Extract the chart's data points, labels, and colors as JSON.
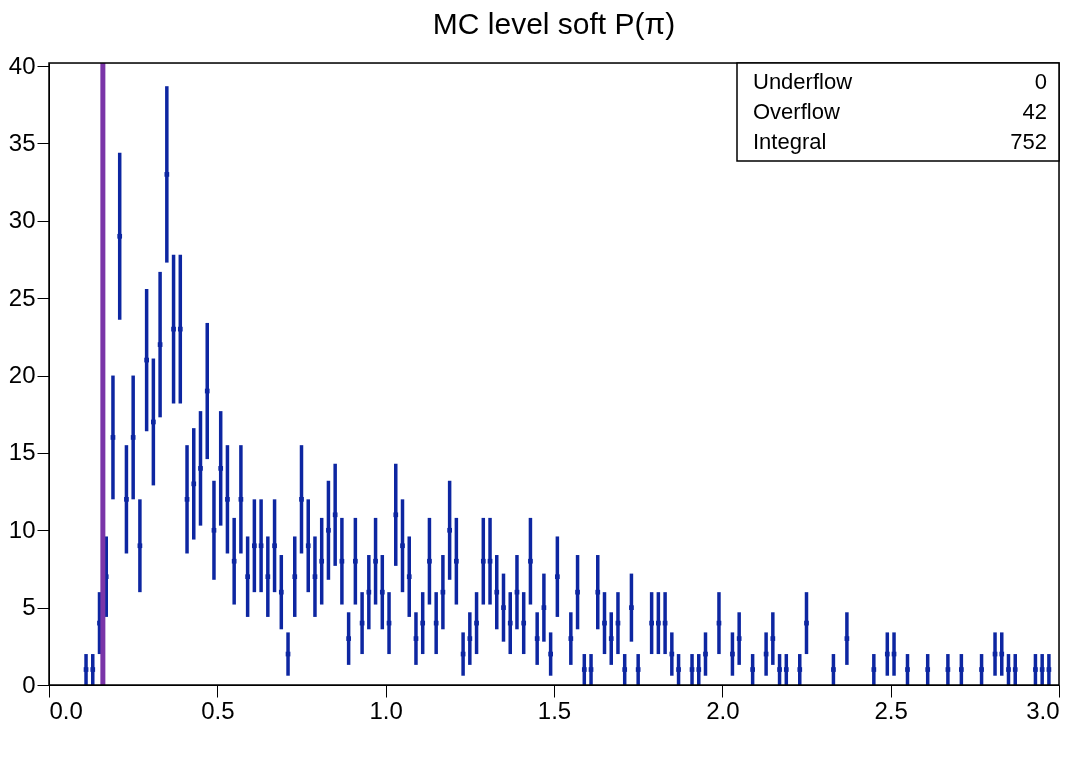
{
  "chart_data": {
    "type": "scatter",
    "title": "MC level soft P(π)",
    "x": [
      0.11,
      0.13,
      0.15,
      0.17,
      0.19,
      0.21,
      0.23,
      0.25,
      0.27,
      0.29,
      0.31,
      0.33,
      0.35,
      0.37,
      0.39,
      0.41,
      0.43,
      0.45,
      0.47,
      0.49,
      0.51,
      0.53,
      0.55,
      0.57,
      0.59,
      0.61,
      0.63,
      0.65,
      0.67,
      0.69,
      0.71,
      0.73,
      0.75,
      0.77,
      0.79,
      0.81,
      0.83,
      0.85,
      0.87,
      0.89,
      0.91,
      0.93,
      0.95,
      0.97,
      0.99,
      1.01,
      1.03,
      1.05,
      1.07,
      1.09,
      1.11,
      1.13,
      1.15,
      1.17,
      1.19,
      1.21,
      1.23,
      1.25,
      1.27,
      1.29,
      1.31,
      1.33,
      1.35,
      1.37,
      1.39,
      1.41,
      1.43,
      1.45,
      1.47,
      1.49,
      1.51,
      1.55,
      1.57,
      1.59,
      1.61,
      1.63,
      1.65,
      1.67,
      1.69,
      1.71,
      1.73,
      1.75,
      1.79,
      1.81,
      1.83,
      1.85,
      1.87,
      1.91,
      1.93,
      1.95,
      1.99,
      2.03,
      2.05,
      2.09,
      2.13,
      2.15,
      2.17,
      2.19,
      2.23,
      2.25,
      2.33,
      2.37,
      2.45,
      2.49,
      2.51,
      2.55,
      2.61,
      2.67,
      2.71,
      2.77,
      2.81,
      2.83,
      2.85,
      2.87,
      2.93,
      2.95,
      2.97
    ],
    "series": [
      {
        "color": "#0d26a1",
        "marker": "square",
        "values": [
          1,
          1,
          4,
          7,
          16,
          29,
          12,
          16,
          9,
          21,
          17,
          22,
          33,
          23,
          23,
          12,
          13,
          14,
          19,
          10,
          14,
          12,
          8,
          12,
          7,
          9,
          9,
          7,
          9,
          6,
          2,
          7,
          12,
          9,
          7,
          8,
          10,
          11,
          8,
          3,
          8,
          4,
          6,
          8,
          6,
          4,
          11,
          9,
          7,
          3,
          4,
          8,
          4,
          6,
          10,
          8,
          2,
          3,
          4,
          8,
          8,
          6,
          5,
          4,
          6,
          4,
          8,
          3,
          5,
          2,
          7,
          3,
          6,
          1,
          1,
          6,
          4,
          3,
          4,
          1,
          5,
          1,
          4,
          4,
          4,
          2,
          1,
          1,
          1,
          2,
          4,
          2,
          3,
          1,
          2,
          3,
          1,
          1,
          1,
          4,
          1,
          3,
          1,
          2,
          2,
          1,
          1,
          1,
          1,
          1,
          2,
          2,
          1,
          1,
          1,
          1,
          1
        ],
        "errors": [
          1,
          1,
          2,
          2.6,
          4,
          5.4,
          3.5,
          4,
          3,
          4.6,
          4.1,
          4.7,
          5.7,
          4.8,
          4.8,
          3.5,
          3.6,
          3.7,
          4.4,
          3.2,
          3.7,
          3.5,
          2.8,
          3.5,
          2.6,
          3,
          3,
          2.6,
          3,
          2.4,
          1.4,
          2.6,
          3.5,
          3,
          2.6,
          2.8,
          3.2,
          3.3,
          2.8,
          1.7,
          2.8,
          2,
          2.4,
          2.8,
          2.4,
          2,
          3.3,
          3,
          2.6,
          1.7,
          2,
          2.8,
          2,
          2.4,
          3.2,
          2.8,
          1.4,
          1.7,
          2,
          2.8,
          2.8,
          2.4,
          2.2,
          2,
          2.4,
          2,
          2.8,
          1.7,
          2.2,
          1.4,
          2.6,
          1.7,
          2.4,
          1,
          1,
          2.4,
          2,
          1.7,
          2,
          1,
          2.2,
          1,
          2,
          2,
          2,
          1.4,
          1,
          1,
          1,
          1.4,
          2,
          1.4,
          1.7,
          1,
          1.4,
          1.7,
          1,
          1,
          1,
          2,
          1,
          1.7,
          1,
          1.4,
          1.4,
          1,
          1,
          1,
          1,
          1,
          1.4,
          1.4,
          1,
          1,
          1,
          1,
          1
        ]
      }
    ],
    "xlim": [
      0,
      3
    ],
    "ylim": [
      0,
      40.2
    ],
    "xticks": [
      {
        "value": 0,
        "label": "0.0"
      },
      {
        "value": 0.5,
        "label": "0.5"
      },
      {
        "value": 1,
        "label": "1.0"
      },
      {
        "value": 1.5,
        "label": "1.5"
      },
      {
        "value": 2,
        "label": "2.0"
      },
      {
        "value": 2.5,
        "label": "2.5"
      },
      {
        "value": 3,
        "label": "3.0"
      }
    ],
    "yticks": [
      0,
      5,
      10,
      15,
      20,
      25,
      30,
      35,
      40
    ],
    "ref_lines": [
      {
        "axis": "x",
        "value": 0.16,
        "color": "#7a35a8"
      }
    ],
    "annotations": [
      "Underflow",
      "0",
      "Overflow",
      "42",
      "Integral",
      "752"
    ],
    "grid": false
  }
}
